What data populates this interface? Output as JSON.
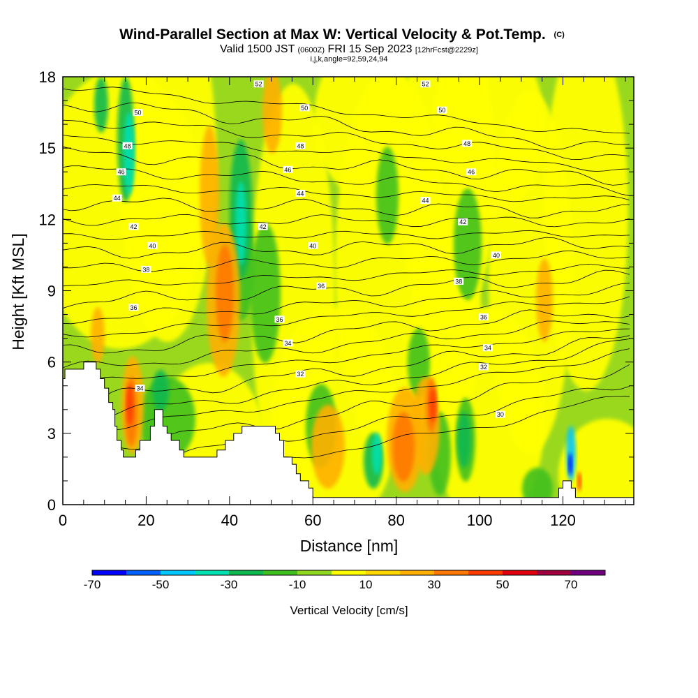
{
  "chart_data": {
    "type": "heatmap",
    "title": "Wind-Parallel Section at Max W: Vertical Velocity & Pot.Temp.",
    "title_suffix": "(C)",
    "subtitle_parts": [
      "Valid 1500 JST ",
      "(0600Z)",
      " FRI 15 Sep 2023 ",
      "[12hrFcst@2229z]"
    ],
    "subtitle2": "i,j,k,angle=92,59,24,94",
    "xlabel": "Distance [nm]",
    "ylabel": "Height [Kft MSL]",
    "xlim": [
      0,
      137
    ],
    "ylim": [
      0,
      18
    ],
    "xticks": [
      0,
      20,
      40,
      60,
      80,
      100,
      120
    ],
    "yticks": [
      0,
      3,
      6,
      9,
      12,
      15,
      18
    ],
    "colorbar": {
      "title": "Vertical Velocity [cm/s]",
      "tick_values": [
        -70,
        -50,
        -30,
        -10,
        10,
        30,
        50,
        70
      ],
      "tick_labels": [
        "-70",
        "-50",
        "-30",
        "-10",
        "10",
        "30",
        "50",
        "70"
      ],
      "range": [
        -70,
        80
      ],
      "colors": [
        "#0000ff",
        "#0060ff",
        "#00c8ff",
        "#00e0b0",
        "#10b850",
        "#40c020",
        "#90d820",
        "#ffff00",
        "#ffd800",
        "#ffb000",
        "#ff7800",
        "#ff3c00",
        "#e00010",
        "#a00040",
        "#700080"
      ]
    },
    "terrain": [
      [
        0,
        5.3
      ],
      [
        0.5,
        5.3
      ],
      [
        0.5,
        5.7
      ],
      [
        5,
        5.7
      ],
      [
        5,
        6.0
      ],
      [
        8,
        6.0
      ],
      [
        8,
        5.7
      ],
      [
        9,
        5.7
      ],
      [
        9,
        5.3
      ],
      [
        10,
        5.3
      ],
      [
        10,
        4.9
      ],
      [
        11,
        4.9
      ],
      [
        11,
        4.3
      ],
      [
        12,
        4.3
      ],
      [
        12,
        4.0
      ],
      [
        12.5,
        4.0
      ],
      [
        12.5,
        3.3
      ],
      [
        13,
        3.3
      ],
      [
        13,
        2.7
      ],
      [
        14,
        2.7
      ],
      [
        14,
        2.3
      ],
      [
        14.5,
        2.3
      ],
      [
        14.5,
        2.0
      ],
      [
        17.5,
        2.0
      ],
      [
        17.5,
        2.3
      ],
      [
        18.5,
        2.3
      ],
      [
        18.5,
        2.7
      ],
      [
        21,
        2.7
      ],
      [
        21,
        3.3
      ],
      [
        22,
        3.3
      ],
      [
        22,
        4.0
      ],
      [
        24,
        4.0
      ],
      [
        24,
        3.3
      ],
      [
        25,
        3.3
      ],
      [
        25,
        3.0
      ],
      [
        26,
        3.0
      ],
      [
        26,
        2.7
      ],
      [
        28,
        2.7
      ],
      [
        28,
        2.3
      ],
      [
        29,
        2.3
      ],
      [
        29,
        2.0
      ],
      [
        37,
        2.0
      ],
      [
        37,
        2.3
      ],
      [
        39,
        2.3
      ],
      [
        39,
        2.7
      ],
      [
        41,
        2.7
      ],
      [
        41,
        3.0
      ],
      [
        43,
        3.0
      ],
      [
        43,
        3.3
      ],
      [
        51,
        3.3
      ],
      [
        51,
        3.0
      ],
      [
        52,
        3.0
      ],
      [
        52,
        2.7
      ],
      [
        53,
        2.7
      ],
      [
        53,
        2.0
      ],
      [
        55,
        2.0
      ],
      [
        55,
        1.7
      ],
      [
        56,
        1.7
      ],
      [
        56,
        1.3
      ],
      [
        57,
        1.3
      ],
      [
        57,
        1.0
      ],
      [
        59,
        1.0
      ],
      [
        59,
        0.7
      ],
      [
        60,
        0.7
      ],
      [
        60,
        0.3
      ],
      [
        119,
        0.3
      ],
      [
        119,
        0.7
      ],
      [
        120,
        0.7
      ],
      [
        120,
        1.0
      ],
      [
        122,
        1.0
      ],
      [
        122,
        0.7
      ],
      [
        123,
        0.7
      ],
      [
        123,
        0.3
      ],
      [
        137,
        0.3
      ]
    ],
    "theta_labels": [
      {
        "text": "52",
        "x": 47,
        "y": 17.7
      },
      {
        "text": "50",
        "x": 18,
        "y": 16.5
      },
      {
        "text": "48",
        "x": 15.5,
        "y": 15.1
      },
      {
        "text": "46",
        "x": 14,
        "y": 14.0
      },
      {
        "text": "44",
        "x": 13,
        "y": 12.9
      },
      {
        "text": "42",
        "x": 17,
        "y": 11.7
      },
      {
        "text": "40",
        "x": 21.5,
        "y": 10.9
      },
      {
        "text": "38",
        "x": 20,
        "y": 9.9
      },
      {
        "text": "36",
        "x": 17,
        "y": 8.3
      },
      {
        "text": "34",
        "x": 18.5,
        "y": 4.9
      },
      {
        "text": "50",
        "x": 58,
        "y": 16.7
      },
      {
        "text": "48",
        "x": 57,
        "y": 15.1
      },
      {
        "text": "46",
        "x": 54,
        "y": 14.1
      },
      {
        "text": "44",
        "x": 57,
        "y": 13.1
      },
      {
        "text": "42",
        "x": 48,
        "y": 11.7
      },
      {
        "text": "40",
        "x": 60,
        "y": 10.9
      },
      {
        "text": "36",
        "x": 62,
        "y": 9.2
      },
      {
        "text": "36",
        "x": 52,
        "y": 7.8
      },
      {
        "text": "34",
        "x": 54,
        "y": 6.8
      },
      {
        "text": "32",
        "x": 57,
        "y": 5.5
      },
      {
        "text": "52",
        "x": 87,
        "y": 17.7
      },
      {
        "text": "50",
        "x": 91,
        "y": 16.6
      },
      {
        "text": "48",
        "x": 97,
        "y": 15.2
      },
      {
        "text": "46",
        "x": 98,
        "y": 14.0
      },
      {
        "text": "44",
        "x": 87,
        "y": 12.8
      },
      {
        "text": "42",
        "x": 96,
        "y": 11.9
      },
      {
        "text": "40",
        "x": 104,
        "y": 10.5
      },
      {
        "text": "38",
        "x": 95,
        "y": 9.4
      },
      {
        "text": "36",
        "x": 101,
        "y": 7.9
      },
      {
        "text": "34",
        "x": 102,
        "y": 6.6
      },
      {
        "text": "32",
        "x": 101,
        "y": 5.8
      },
      {
        "text": "30",
        "x": 105,
        "y": 3.8
      }
    ]
  }
}
